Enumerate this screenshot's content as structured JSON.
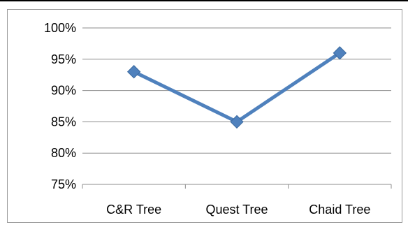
{
  "chart_data": {
    "type": "line",
    "title": "",
    "xlabel": "",
    "ylabel": "",
    "categories": [
      "C&R Tree",
      "Quest Tree",
      "Chaid Tree"
    ],
    "series": [
      {
        "values": [
          93,
          85,
          96
        ],
        "color": "#4F81BD",
        "marker": "diamond"
      }
    ],
    "ylim": [
      75,
      100
    ],
    "y_ticks": [
      75,
      80,
      85,
      90,
      95,
      100
    ],
    "y_tick_labels": [
      "75%",
      "80%",
      "85%",
      "90%",
      "95%",
      "100%"
    ],
    "grid": "horizontal",
    "legend": "none",
    "gridline_color": "#8c8c8c",
    "axis_color": "#8c8c8c"
  }
}
